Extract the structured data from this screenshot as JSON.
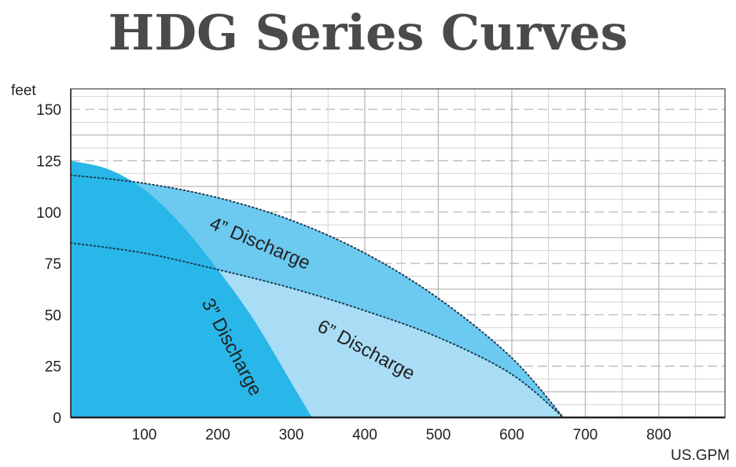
{
  "title": "HDG Series Curves",
  "chart_data": {
    "type": "area",
    "title": "HDG Series Curves",
    "xlabel": "US.GPM",
    "ylabel": "feet",
    "xlim": [
      0,
      890
    ],
    "ylim": [
      0,
      160
    ],
    "xticks": [
      100,
      200,
      300,
      400,
      500,
      600,
      700,
      800
    ],
    "yticks": [
      0,
      25,
      50,
      75,
      100,
      125,
      150
    ],
    "grid": true,
    "colors": {
      "three": "#29b6e8",
      "four": "#6ccaf1",
      "six": "#a9ddf6",
      "grid_major": "#b9b9b9",
      "grid_minor": "#d2d2d2"
    },
    "series": [
      {
        "name": "3\" Discharge",
        "fill": "three",
        "x": [
          0,
          50,
          100,
          150,
          200,
          250,
          300,
          328
        ],
        "y": [
          125,
          121,
          111,
          94,
          72,
          47,
          17,
          0
        ]
      },
      {
        "name": "4\" Discharge",
        "fill": "four",
        "x": [
          0,
          100,
          200,
          300,
          400,
          500,
          600,
          670
        ],
        "y": [
          118,
          114,
          107,
          96,
          80,
          58,
          29,
          0
        ]
      },
      {
        "name": "6\" Discharge",
        "fill": "six",
        "x": [
          0,
          100,
          200,
          300,
          400,
          500,
          600,
          670
        ],
        "y": [
          85,
          80,
          72,
          63,
          52,
          39,
          21,
          0
        ]
      }
    ],
    "labels": [
      "4” Discharge",
      "3” Discharge",
      "6” Discharge"
    ]
  }
}
